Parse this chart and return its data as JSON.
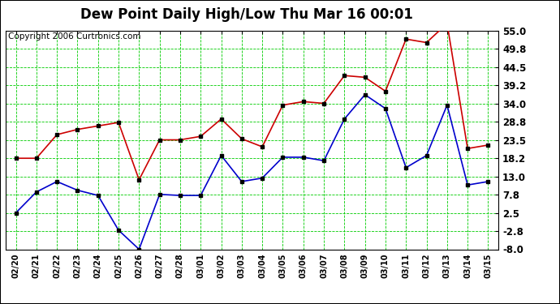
{
  "title": "Dew Point Daily High/Low Thu Mar 16 00:01",
  "copyright": "Copyright 2006 Curtronics.com",
  "labels": [
    "02/20",
    "02/21",
    "02/22",
    "02/23",
    "02/24",
    "02/25",
    "02/26",
    "02/27",
    "02/28",
    "03/01",
    "03/02",
    "03/03",
    "03/04",
    "03/05",
    "03/06",
    "03/07",
    "03/08",
    "03/09",
    "03/10",
    "03/11",
    "03/12",
    "03/13",
    "03/14",
    "03/15"
  ],
  "high_values": [
    18.2,
    18.2,
    25.0,
    26.5,
    27.5,
    28.5,
    12.0,
    23.5,
    23.5,
    24.5,
    29.5,
    23.8,
    21.5,
    33.5,
    34.5,
    34.0,
    42.0,
    41.5,
    37.5,
    52.5,
    51.5,
    57.0,
    21.0,
    22.0
  ],
  "low_values": [
    2.5,
    8.5,
    11.5,
    9.0,
    7.5,
    -2.5,
    -8.0,
    7.8,
    7.5,
    7.5,
    19.0,
    11.5,
    12.5,
    18.5,
    18.5,
    17.5,
    29.5,
    36.5,
    32.5,
    15.5,
    19.0,
    33.5,
    10.5,
    11.5
  ],
  "high_color": "#cc0000",
  "low_color": "#0000cc",
  "marker_color": "#000000",
  "bg_color": "#ffffff",
  "grid_color": "#00cc00",
  "yticks": [
    55.0,
    49.8,
    44.5,
    39.2,
    34.0,
    28.8,
    23.5,
    18.2,
    13.0,
    7.8,
    2.5,
    -2.8,
    -8.0
  ],
  "ymin": -8.0,
  "ymax": 55.0,
  "title_fontsize": 12,
  "copyright_fontsize": 7.5,
  "tick_fontsize": 8.5,
  "xlabel_fontsize": 7
}
